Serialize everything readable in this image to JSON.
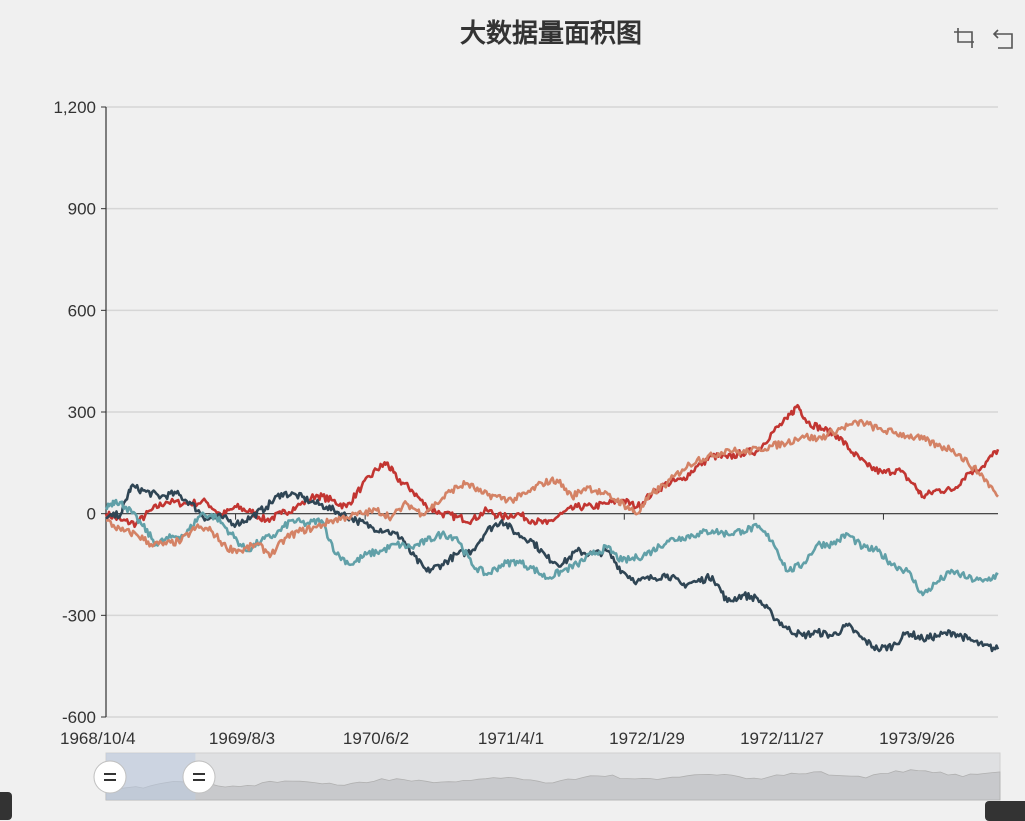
{
  "chart_data": {
    "type": "line",
    "title": "大数据量面积图",
    "ylim": [
      -600,
      1200
    ],
    "yticks": [
      "1,200",
      "900",
      "600",
      "300",
      "0",
      "-300",
      "-600"
    ],
    "yticks_values": [
      1200,
      900,
      600,
      300,
      0,
      -300,
      -600
    ],
    "xticks": [
      "1968/10/4",
      "1969/8/3",
      "1970/6/2",
      "1971/4/1",
      "1972/1/29",
      "1972/11/27",
      "1973/9/26"
    ],
    "x_start": "1968/10/4",
    "x_end": "1974/6/14",
    "grid": true,
    "series": [
      {
        "color": "#c23531",
        "values": [
          [
            0,
            0
          ],
          [
            15,
            -20
          ],
          [
            30,
            -30
          ],
          [
            45,
            10
          ],
          [
            60,
            35
          ],
          [
            80,
            30
          ],
          [
            100,
            35
          ],
          [
            115,
            -5
          ],
          [
            130,
            20
          ],
          [
            145,
            5
          ],
          [
            160,
            -20
          ],
          [
            175,
            0
          ],
          [
            190,
            20
          ],
          [
            210,
            55
          ],
          [
            225,
            40
          ],
          [
            240,
            20
          ],
          [
            255,
            80
          ],
          [
            270,
            130
          ],
          [
            280,
            150
          ],
          [
            290,
            105
          ],
          [
            305,
            70
          ],
          [
            320,
            20
          ],
          [
            335,
            0
          ],
          [
            350,
            -10
          ],
          [
            365,
            -20
          ],
          [
            380,
            10
          ],
          [
            395,
            -10
          ],
          [
            410,
            0
          ],
          [
            425,
            -20
          ],
          [
            440,
            -30
          ],
          [
            455,
            0
          ],
          [
            470,
            20
          ],
          [
            485,
            20
          ],
          [
            500,
            30
          ],
          [
            515,
            40
          ],
          [
            530,
            20
          ],
          [
            545,
            60
          ],
          [
            560,
            90
          ],
          [
            575,
            100
          ],
          [
            590,
            140
          ],
          [
            605,
            170
          ],
          [
            620,
            165
          ],
          [
            635,
            180
          ],
          [
            650,
            185
          ],
          [
            665,
            240
          ],
          [
            680,
            280
          ],
          [
            690,
            320
          ],
          [
            700,
            270
          ],
          [
            715,
            250
          ],
          [
            730,
            230
          ],
          [
            745,
            180
          ],
          [
            760,
            140
          ],
          [
            775,
            120
          ],
          [
            790,
            130
          ],
          [
            805,
            90
          ],
          [
            815,
            50
          ],
          [
            830,
            70
          ],
          [
            845,
            70
          ],
          [
            860,
            120
          ],
          [
            875,
            140
          ],
          [
            890,
            190
          ]
        ]
      },
      {
        "color": "#2f4554",
        "values": [
          [
            0,
            -15
          ],
          [
            15,
            0
          ],
          [
            25,
            80
          ],
          [
            40,
            65
          ],
          [
            55,
            50
          ],
          [
            70,
            60
          ],
          [
            85,
            30
          ],
          [
            100,
            -15
          ],
          [
            115,
            -10
          ],
          [
            130,
            -30
          ],
          [
            145,
            -10
          ],
          [
            160,
            20
          ],
          [
            175,
            60
          ],
          [
            190,
            55
          ],
          [
            205,
            35
          ],
          [
            220,
            20
          ],
          [
            235,
            0
          ],
          [
            250,
            -20
          ],
          [
            265,
            -40
          ],
          [
            280,
            -50
          ],
          [
            295,
            -70
          ],
          [
            305,
            -120
          ],
          [
            320,
            -170
          ],
          [
            335,
            -150
          ],
          [
            350,
            -120
          ],
          [
            365,
            -110
          ],
          [
            380,
            -50
          ],
          [
            395,
            -20
          ],
          [
            410,
            -60
          ],
          [
            425,
            -80
          ],
          [
            440,
            -130
          ],
          [
            455,
            -150
          ],
          [
            470,
            -110
          ],
          [
            485,
            -120
          ],
          [
            500,
            -110
          ],
          [
            515,
            -170
          ],
          [
            530,
            -200
          ],
          [
            545,
            -190
          ],
          [
            560,
            -180
          ],
          [
            575,
            -210
          ],
          [
            590,
            -200
          ],
          [
            605,
            -185
          ],
          [
            620,
            -260
          ],
          [
            635,
            -240
          ],
          [
            650,
            -250
          ],
          [
            665,
            -300
          ],
          [
            680,
            -340
          ],
          [
            695,
            -360
          ],
          [
            710,
            -350
          ],
          [
            725,
            -360
          ],
          [
            740,
            -330
          ],
          [
            755,
            -370
          ],
          [
            770,
            -400
          ],
          [
            785,
            -390
          ],
          [
            800,
            -350
          ],
          [
            815,
            -370
          ],
          [
            830,
            -360
          ],
          [
            845,
            -350
          ],
          [
            860,
            -370
          ],
          [
            875,
            -390
          ],
          [
            890,
            -400
          ]
        ]
      },
      {
        "color": "#61a0a8",
        "values": [
          [
            0,
            20
          ],
          [
            10,
            40
          ],
          [
            20,
            20
          ],
          [
            35,
            -30
          ],
          [
            50,
            -90
          ],
          [
            65,
            -70
          ],
          [
            80,
            -60
          ],
          [
            95,
            0
          ],
          [
            110,
            -10
          ],
          [
            125,
            -60
          ],
          [
            140,
            -110
          ],
          [
            155,
            -80
          ],
          [
            170,
            -60
          ],
          [
            185,
            -20
          ],
          [
            200,
            -30
          ],
          [
            215,
            -20
          ],
          [
            230,
            -120
          ],
          [
            245,
            -150
          ],
          [
            260,
            -120
          ],
          [
            275,
            -110
          ],
          [
            290,
            -90
          ],
          [
            305,
            -100
          ],
          [
            320,
            -80
          ],
          [
            335,
            -60
          ],
          [
            350,
            -70
          ],
          [
            365,
            -150
          ],
          [
            380,
            -180
          ],
          [
            395,
            -150
          ],
          [
            410,
            -140
          ],
          [
            425,
            -160
          ],
          [
            440,
            -190
          ],
          [
            455,
            -170
          ],
          [
            470,
            -150
          ],
          [
            485,
            -120
          ],
          [
            500,
            -100
          ],
          [
            515,
            -140
          ],
          [
            530,
            -130
          ],
          [
            545,
            -110
          ],
          [
            560,
            -80
          ],
          [
            575,
            -70
          ],
          [
            590,
            -60
          ],
          [
            605,
            -50
          ],
          [
            620,
            -60
          ],
          [
            635,
            -50
          ],
          [
            650,
            -40
          ],
          [
            665,
            -80
          ],
          [
            680,
            -170
          ],
          [
            695,
            -150
          ],
          [
            710,
            -90
          ],
          [
            725,
            -90
          ],
          [
            740,
            -60
          ],
          [
            755,
            -100
          ],
          [
            770,
            -110
          ],
          [
            785,
            -150
          ],
          [
            800,
            -170
          ],
          [
            815,
            -240
          ],
          [
            830,
            -200
          ],
          [
            845,
            -170
          ],
          [
            860,
            -190
          ],
          [
            875,
            -200
          ],
          [
            890,
            -180
          ]
        ]
      },
      {
        "color": "#d48265",
        "values": [
          [
            0,
            -20
          ],
          [
            15,
            -50
          ],
          [
            30,
            -60
          ],
          [
            45,
            -90
          ],
          [
            60,
            -90
          ],
          [
            75,
            -80
          ],
          [
            90,
            -40
          ],
          [
            105,
            -50
          ],
          [
            120,
            -100
          ],
          [
            135,
            -110
          ],
          [
            150,
            -90
          ],
          [
            165,
            -120
          ],
          [
            180,
            -70
          ],
          [
            195,
            -50
          ],
          [
            210,
            -40
          ],
          [
            225,
            -20
          ],
          [
            240,
            -10
          ],
          [
            255,
            0
          ],
          [
            270,
            10
          ],
          [
            285,
            -10
          ],
          [
            300,
            30
          ],
          [
            315,
            0
          ],
          [
            330,
            30
          ],
          [
            345,
            70
          ],
          [
            360,
            90
          ],
          [
            375,
            60
          ],
          [
            390,
            50
          ],
          [
            405,
            40
          ],
          [
            420,
            60
          ],
          [
            435,
            90
          ],
          [
            450,
            100
          ],
          [
            465,
            50
          ],
          [
            480,
            80
          ],
          [
            495,
            60
          ],
          [
            510,
            40
          ],
          [
            520,
            20
          ],
          [
            530,
            0
          ],
          [
            545,
            60
          ],
          [
            560,
            90
          ],
          [
            575,
            130
          ],
          [
            590,
            160
          ],
          [
            605,
            170
          ],
          [
            620,
            190
          ],
          [
            635,
            180
          ],
          [
            650,
            190
          ],
          [
            665,
            200
          ],
          [
            680,
            210
          ],
          [
            695,
            230
          ],
          [
            710,
            220
          ],
          [
            725,
            240
          ],
          [
            740,
            260
          ],
          [
            755,
            270
          ],
          [
            770,
            250
          ],
          [
            785,
            240
          ],
          [
            800,
            230
          ],
          [
            815,
            220
          ],
          [
            830,
            200
          ],
          [
            845,
            190
          ],
          [
            860,
            150
          ],
          [
            875,
            110
          ],
          [
            890,
            50
          ]
        ]
      }
    ]
  },
  "dataZoom": {
    "start": 0,
    "end": 10
  },
  "toolbox": {
    "icons": [
      "zoom-icon",
      "restore-icon"
    ]
  }
}
